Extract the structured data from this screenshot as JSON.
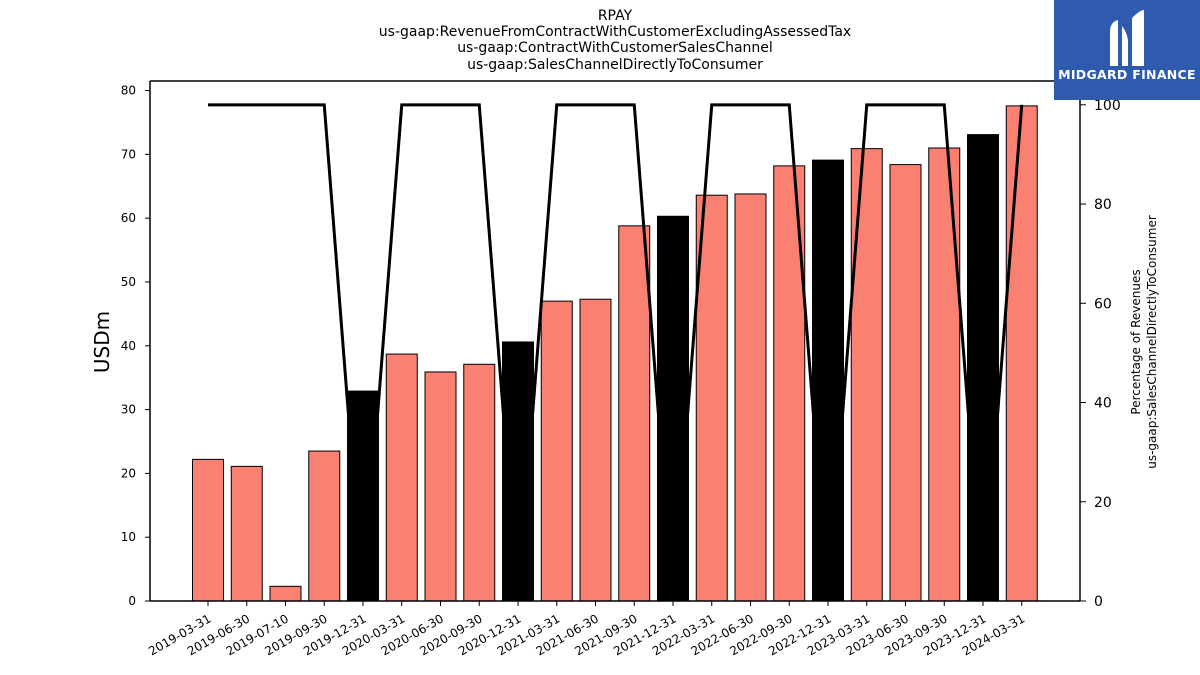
{
  "chart_data": {
    "type": "bar",
    "title_lines": [
      "RPAY",
      "us-gaap:RevenueFromContractWithCustomerExcludingAssessedTax",
      "us-gaap:ContractWithCustomerSalesChannel",
      "us-gaap:SalesChannelDirectlyToConsumer"
    ],
    "ylabel": "USDm",
    "ylabel_right_lines": [
      "Percentage of Revenues",
      "us-gaap:SalesChannelDirectlyToConsumer"
    ],
    "ylim": [
      0,
      81.5
    ],
    "ylim_right": [
      0,
      104.8
    ],
    "yticks": [
      0,
      10,
      20,
      30,
      40,
      50,
      60,
      70,
      80
    ],
    "yticks_right": [
      0,
      20,
      40,
      60,
      80,
      100
    ],
    "categories": [
      "2019-03-31",
      "2019-06-30",
      "2019-07-10",
      "2019-09-30",
      "2019-12-31",
      "2020-03-31",
      "2020-06-30",
      "2020-09-30",
      "2020-12-31",
      "2021-03-31",
      "2021-06-30",
      "2021-09-30",
      "2021-12-31",
      "2022-03-31",
      "2022-06-30",
      "2022-09-30",
      "2022-12-31",
      "2023-03-31",
      "2023-06-30",
      "2023-09-30",
      "2023-12-31",
      "2024-03-31"
    ],
    "values": [
      22.2,
      21.1,
      2.3,
      23.5,
      32.9,
      38.7,
      35.9,
      37.1,
      40.6,
      47.0,
      47.3,
      58.8,
      60.3,
      63.6,
      63.8,
      68.2,
      69.1,
      70.9,
      68.4,
      71.0,
      73.1,
      77.6
    ],
    "bar_colors": [
      "#fa8072",
      "#fa8072",
      "#fa8072",
      "#fa8072",
      "#000000",
      "#fa8072",
      "#fa8072",
      "#fa8072",
      "#000000",
      "#fa8072",
      "#fa8072",
      "#fa8072",
      "#000000",
      "#fa8072",
      "#fa8072",
      "#fa8072",
      "#000000",
      "#fa8072",
      "#fa8072",
      "#fa8072",
      "#000000",
      "#fa8072"
    ],
    "line_values": [
      100,
      100,
      100,
      100,
      0,
      100,
      100,
      100,
      0,
      100,
      100,
      100,
      0,
      100,
      100,
      100,
      0,
      100,
      100,
      100,
      0,
      100
    ],
    "line_color": "#000000"
  },
  "logo": {
    "name": "MIDGARD FINANCE",
    "background": "#2e5bad"
  }
}
